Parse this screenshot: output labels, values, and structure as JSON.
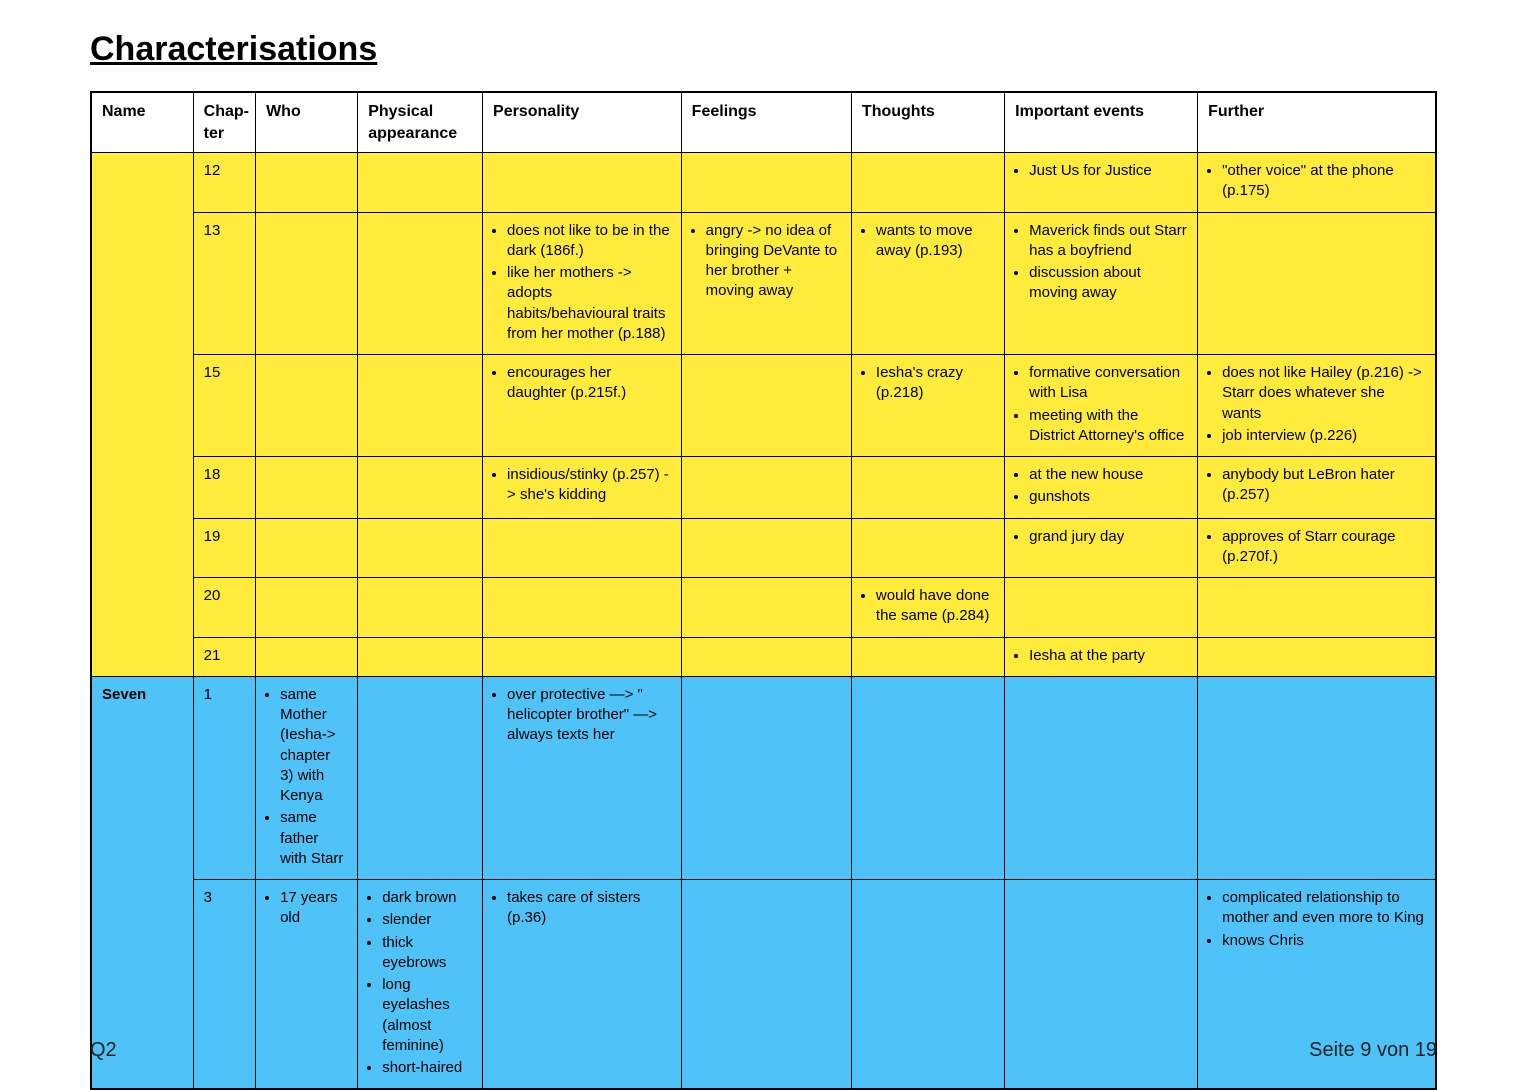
{
  "title": "Characterisations",
  "footer_left": "Q2",
  "footer_right": "Seite 9 von 19",
  "colors": {
    "group_yellow": "#ffeb3b",
    "group_blue": "#4fc3f7",
    "border": "#000000",
    "background": "#ffffff"
  },
  "columns": [
    "Name",
    "Chap-ter",
    "Who",
    "Physical appearance",
    "Personality",
    "Feelings",
    "Thoughts",
    "Important events",
    "Further"
  ],
  "groups": [
    {
      "name": "",
      "color_class": "bg-yellow",
      "rows": [
        {
          "chapter": "12",
          "who": [],
          "physical": [],
          "personality": [],
          "feelings": [],
          "thoughts": [],
          "events": [
            "Just Us for Justice"
          ],
          "further": [
            "\"other voice\" at the phone (p.175)"
          ]
        },
        {
          "chapter": "13",
          "who": [],
          "physical": [],
          "personality": [
            "does not like to be in the dark (186f.)",
            "like her mothers -> adopts habits/behavioural traits from her mother (p.188)"
          ],
          "feelings": [
            "angry -> no idea of bringing DeVante to her brother + moving away"
          ],
          "thoughts": [
            "wants to move away (p.193)"
          ],
          "events": [
            "Maverick finds out Starr has a boyfriend",
            "discussion about moving away"
          ],
          "further": []
        },
        {
          "chapter": "15",
          "who": [],
          "physical": [],
          "personality": [
            "encourages her daughter (p.215f.)"
          ],
          "feelings": [],
          "thoughts": [
            "Iesha's crazy (p.218)"
          ],
          "events": [
            "formative conversation with Lisa",
            "meeting with the District Attorney's office"
          ],
          "further": [
            "does not like Hailey (p.216) -> Starr does whatever she wants",
            "job interview (p.226)"
          ]
        },
        {
          "chapter": "18",
          "who": [],
          "physical": [],
          "personality": [
            "insidious/stinky (p.257) -> she's kidding"
          ],
          "feelings": [],
          "thoughts": [],
          "events": [
            "at the new house",
            "gunshots"
          ],
          "further": [
            "anybody but LeBron hater (p.257)"
          ]
        },
        {
          "chapter": "19",
          "who": [],
          "physical": [],
          "personality": [],
          "feelings": [],
          "thoughts": [],
          "events": [
            "grand jury day"
          ],
          "further": [
            "approves of Starr courage (p.270f.)"
          ]
        },
        {
          "chapter": "20",
          "who": [],
          "physical": [],
          "personality": [],
          "feelings": [],
          "thoughts": [
            "would have done the same (p.284)"
          ],
          "events": [],
          "further": []
        },
        {
          "chapter": "21",
          "who": [],
          "physical": [],
          "personality": [],
          "feelings": [],
          "thoughts": [],
          "events": [
            "Iesha at the party"
          ],
          "further": []
        }
      ]
    },
    {
      "name": "Seven",
      "color_class": "bg-blue",
      "rows": [
        {
          "chapter": "1",
          "who": [
            "same Mother (Iesha-> chapter 3) with Kenya",
            "same father with Starr"
          ],
          "physical": [],
          "personality": [
            "over protective —> \" helicopter brother\" —> always texts her"
          ],
          "feelings": [],
          "thoughts": [],
          "events": [],
          "further": []
        },
        {
          "chapter": "3",
          "who": [
            "17 years old"
          ],
          "physical": [
            "dark brown",
            "slender",
            "thick eyebrows",
            "long eyelashes (almost feminine)",
            "short-haired"
          ],
          "personality": [
            "takes care of sisters (p.36)"
          ],
          "feelings": [],
          "thoughts": [],
          "events": [],
          "further": [
            "complicated relationship to mother and even more to King",
            "knows Chris"
          ]
        }
      ]
    }
  ]
}
